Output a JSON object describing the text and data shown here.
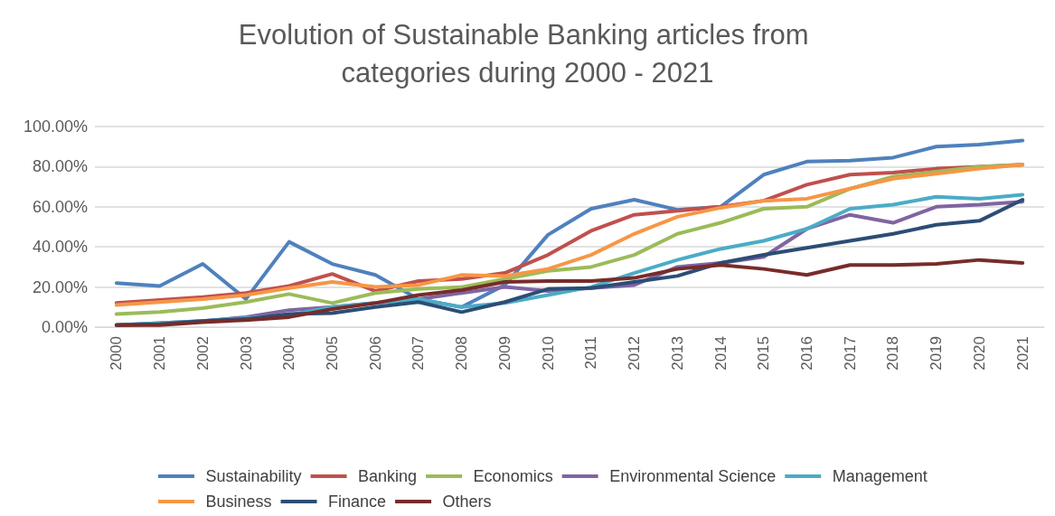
{
  "chart_data": {
    "type": "line",
    "title": "Evolution of Sustainable Banking articles from categories during 2000 - 2021",
    "categories": [
      "2000",
      "2001",
      "2002",
      "2003",
      "2004",
      "2005",
      "2006",
      "2007",
      "2008",
      "2009",
      "2010",
      "2011",
      "2012",
      "2013",
      "2014",
      "2015",
      "2016",
      "2017",
      "2018",
      "2019",
      "2020",
      "2021"
    ],
    "series": [
      {
        "name": "Sustainability",
        "color": "#4f81bd",
        "values": [
          22,
          20.5,
          31.5,
          14,
          42.5,
          31.5,
          26,
          14,
          10,
          21,
          46,
          59,
          63.5,
          58.5,
          60,
          76,
          82.5,
          83,
          84.5,
          90,
          91,
          93
        ]
      },
      {
        "name": "Banking",
        "color": "#c0504d",
        "values": [
          12,
          13.5,
          15,
          17,
          20.5,
          26.5,
          18,
          23,
          24,
          27,
          36,
          48,
          56,
          58,
          60,
          63,
          71,
          76,
          77,
          79,
          80,
          81
        ]
      },
      {
        "name": "Economics",
        "color": "#9bbb59",
        "values": [
          6.5,
          7.5,
          9.5,
          12.5,
          16.5,
          12,
          17,
          19,
          20,
          24,
          28,
          30,
          36,
          46.5,
          52,
          59,
          60,
          69,
          75,
          77.5,
          80,
          81
        ]
      },
      {
        "name": "Environmental Science",
        "color": "#8064a2",
        "values": [
          1,
          2,
          3,
          5,
          8.5,
          10,
          12,
          14,
          17,
          20,
          18,
          19.5,
          21,
          30,
          32,
          35,
          49,
          56,
          52,
          60,
          61,
          62.5
        ]
      },
      {
        "name": "Management",
        "color": "#4bacc6",
        "values": [
          1,
          2,
          3,
          4.5,
          6,
          10,
          12,
          14,
          10,
          12,
          16,
          20,
          27,
          33.5,
          39,
          43,
          49,
          59,
          61,
          65,
          64,
          66
        ]
      },
      {
        "name": "Business",
        "color": "#f79646",
        "values": [
          11,
          12.5,
          14,
          16,
          19.5,
          22.5,
          20,
          21,
          26,
          25.5,
          29,
          36,
          46.5,
          55,
          59.5,
          63,
          64,
          69,
          74,
          76.5,
          79,
          81
        ]
      },
      {
        "name": "Finance",
        "color": "#2c4d75",
        "values": [
          1,
          1.5,
          3,
          4,
          6.5,
          7,
          10,
          12.5,
          7.5,
          12.5,
          19,
          19.5,
          22.5,
          25.5,
          32,
          36,
          39.5,
          43,
          46.5,
          51,
          53,
          63.5
        ]
      },
      {
        "name": "Others",
        "color": "#772c2a",
        "values": [
          1,
          1,
          2.5,
          3.5,
          5,
          9,
          12,
          16,
          18.5,
          22.5,
          23,
          23,
          24.5,
          29,
          31,
          29,
          26,
          31,
          31,
          31.5,
          33.5,
          32
        ]
      }
    ],
    "ylim": [
      0,
      100
    ],
    "yticks": [
      {
        "value": 0,
        "label": "0.00%"
      },
      {
        "value": 20,
        "label": "20.00%"
      },
      {
        "value": 40,
        "label": "40.00%"
      },
      {
        "value": 60,
        "label": "60.00%"
      },
      {
        "value": 80,
        "label": "80.00%"
      },
      {
        "value": 100,
        "label": "100.00%"
      }
    ],
    "grid": "y",
    "legend": "bottom",
    "marker": "none",
    "line_style": "solid"
  }
}
